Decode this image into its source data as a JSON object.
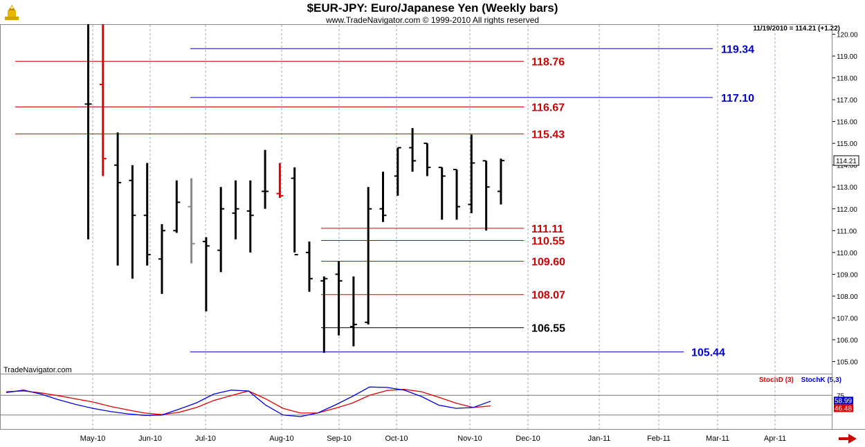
{
  "header": {
    "title": "$EUR-JPY:  Euro/Japanese Yen  (Weekly bars)",
    "subtitle": "www.TradeNavigator.com © 1999-2010 All rights reserved",
    "last_info": "11/19/2010 = 114.21 (+1.22)",
    "source_label": "TradeNavigator.com"
  },
  "colors": {
    "bars": "#000000",
    "down_bar_highlight": "#e00000",
    "neutral_bar": "#888888",
    "red_level": "#cc0000",
    "blue_level": "#0000cc",
    "black_level": "#000000",
    "stochD": "#dd0000",
    "stochK": "#0000dd",
    "grid": "#9aa6c8"
  },
  "chart_data": [
    {
      "type": "ohlc",
      "title": "$EUR-JPY:  Euro/Japanese Yen  (Weekly bars)",
      "ylim": [
        104.7,
        120.3
      ],
      "y_ticks": [
        "105.00",
        "106.00",
        "107.00",
        "108.00",
        "109.00",
        "110.00",
        "111.00",
        "112.00",
        "113.00",
        "114.00",
        "115.00",
        "116.00",
        "117.00",
        "118.00",
        "119.00",
        "120.00"
      ],
      "last_price_label": "114.21",
      "x_months": [
        "May-10",
        "Jun-10",
        "Jul-10",
        "Aug-10",
        "Sep-10",
        "Oct-10",
        "Nov-10",
        "Dec-10",
        "Jan-11",
        "Feb-11",
        "Mar-11",
        "Apr-11"
      ],
      "grid": true,
      "bars": [
        {
          "open": 116.8,
          "high": 121.0,
          "low": 110.6,
          "close": 116.8,
          "color": "black"
        },
        {
          "open": 117.7,
          "high": 121.0,
          "low": 113.5,
          "close": 114.3,
          "color": "red"
        },
        {
          "open": 114.0,
          "high": 115.5,
          "low": 109.4,
          "close": 113.2,
          "color": "black"
        },
        {
          "open": 113.3,
          "high": 114.0,
          "low": 108.8,
          "close": 111.7,
          "color": "black"
        },
        {
          "open": 111.7,
          "high": 114.1,
          "low": 109.4,
          "close": 109.9,
          "color": "black"
        },
        {
          "open": 109.7,
          "high": 111.3,
          "low": 108.1,
          "close": 111.0,
          "color": "black"
        },
        {
          "open": 111.0,
          "high": 113.3,
          "low": 110.9,
          "close": 112.3,
          "color": "black"
        },
        {
          "open": 112.1,
          "high": 113.4,
          "low": 109.5,
          "close": 110.4,
          "color": "gray"
        },
        {
          "open": 110.5,
          "high": 110.7,
          "low": 107.3,
          "close": 110.3,
          "color": "black"
        },
        {
          "open": 110.1,
          "high": 113.0,
          "low": 109.1,
          "close": 112.0,
          "color": "black"
        },
        {
          "open": 111.8,
          "high": 113.3,
          "low": 110.6,
          "close": 112.0,
          "color": "black"
        },
        {
          "open": 111.9,
          "high": 113.3,
          "low": 110.0,
          "close": 111.7,
          "color": "black"
        },
        {
          "open": 112.8,
          "high": 114.7,
          "low": 112.0,
          "close": 112.8,
          "color": "black"
        },
        {
          "open": 112.7,
          "high": 114.1,
          "low": 112.5,
          "close": 112.6,
          "color": "red"
        },
        {
          "open": 113.4,
          "high": 113.9,
          "low": 110.0,
          "close": 109.9,
          "color": "black"
        },
        {
          "open": 110.0,
          "high": 110.5,
          "low": 108.2,
          "close": 108.8,
          "color": "black"
        },
        {
          "open": 108.7,
          "high": 108.9,
          "low": 105.4,
          "close": 108.8,
          "color": "black"
        },
        {
          "open": 109.0,
          "high": 109.6,
          "low": 106.2,
          "close": 108.7,
          "color": "black"
        },
        {
          "open": 106.6,
          "high": 108.9,
          "low": 105.7,
          "close": 106.7,
          "color": "black"
        },
        {
          "open": 106.8,
          "high": 113.0,
          "low": 106.7,
          "close": 112.0,
          "color": "black"
        },
        {
          "open": 112.0,
          "high": 113.7,
          "low": 111.4,
          "close": 111.7,
          "color": "black"
        },
        {
          "open": 113.5,
          "high": 114.8,
          "low": 112.6,
          "close": 114.8,
          "color": "black"
        },
        {
          "open": 114.8,
          "high": 115.7,
          "low": 113.7,
          "close": 114.2,
          "color": "black"
        },
        {
          "open": 115.0,
          "high": 115.0,
          "low": 113.5,
          "close": 113.9,
          "color": "black"
        },
        {
          "open": 113.9,
          "high": 113.9,
          "low": 111.5,
          "close": 113.5,
          "color": "black"
        },
        {
          "open": 113.8,
          "high": 113.8,
          "low": 111.5,
          "close": 112.1,
          "color": "black"
        },
        {
          "open": 112.2,
          "high": 115.4,
          "low": 111.8,
          "close": 114.1,
          "color": "black"
        },
        {
          "open": 114.2,
          "high": 114.2,
          "low": 111.0,
          "close": 113.0,
          "color": "black"
        },
        {
          "open": 112.8,
          "high": 114.3,
          "low": 112.2,
          "close": 114.21,
          "color": "black"
        }
      ],
      "levels": [
        {
          "value": 119.34,
          "label": "119.34",
          "color": "blue",
          "span": "right"
        },
        {
          "value": 118.76,
          "label": "118.76",
          "color": "red",
          "span": "left"
        },
        {
          "value": 117.1,
          "label": "117.10",
          "color": "blue",
          "span": "right"
        },
        {
          "value": 116.67,
          "label": "116.67",
          "color": "red",
          "span": "left"
        },
        {
          "value": 115.43,
          "label": "115.43",
          "color": "red",
          "span": "left"
        },
        {
          "value": 111.11,
          "label": "111.11",
          "color": "red",
          "span": "short"
        },
        {
          "value": 110.55,
          "label": "110.55",
          "color": "red",
          "span": "short"
        },
        {
          "value": 109.6,
          "label": "109.60",
          "color": "red",
          "span": "short"
        },
        {
          "value": 108.07,
          "label": "108.07",
          "color": "red",
          "span": "short"
        },
        {
          "value": 106.55,
          "label": "106.55",
          "color": "black",
          "span": "short"
        },
        {
          "value": 105.44,
          "label": "105.44",
          "color": "blue",
          "span": "right"
        }
      ]
    },
    {
      "type": "line",
      "title": "",
      "ylim": [
        0,
        100
      ],
      "ref_lines": [
        75,
        25
      ],
      "tick_labels": [
        "75"
      ],
      "series": [
        {
          "name": "StochD (3)",
          "color": "red",
          "last_label": "46.48",
          "values": [
            [
              0,
              84
            ],
            [
              1,
              86
            ],
            [
              2,
              81
            ],
            [
              3,
              74
            ],
            [
              4,
              66
            ],
            [
              5,
              58
            ],
            [
              6,
              47
            ],
            [
              7,
              38
            ],
            [
              8,
              30
            ],
            [
              9,
              26
            ],
            [
              10,
              32
            ],
            [
              11,
              44
            ],
            [
              12,
              62
            ],
            [
              13,
              74
            ],
            [
              14,
              86
            ],
            [
              15,
              66
            ],
            [
              16,
              42
            ],
            [
              17,
              30
            ],
            [
              18,
              30
            ],
            [
              19,
              42
            ],
            [
              20,
              55
            ],
            [
              21,
              75
            ],
            [
              22,
              87
            ],
            [
              23,
              90
            ],
            [
              24,
              84
            ],
            [
              25,
              70
            ],
            [
              26,
              55
            ],
            [
              27,
              44
            ],
            [
              28,
              48
            ]
          ]
        },
        {
          "name": "StochK (5,3)",
          "color": "blue",
          "last_label": "58.99",
          "values": [
            [
              0,
              82
            ],
            [
              1,
              88
            ],
            [
              2,
              78
            ],
            [
              3,
              64
            ],
            [
              4,
              52
            ],
            [
              5,
              42
            ],
            [
              6,
              34
            ],
            [
              7,
              28
            ],
            [
              8,
              24
            ],
            [
              9,
              25
            ],
            [
              10,
              40
            ],
            [
              11,
              56
            ],
            [
              12,
              78
            ],
            [
              13,
              88
            ],
            [
              14,
              86
            ],
            [
              15,
              50
            ],
            [
              16,
              25
            ],
            [
              17,
              21
            ],
            [
              18,
              30
            ],
            [
              19,
              50
            ],
            [
              20,
              72
            ],
            [
              21,
              96
            ],
            [
              22,
              95
            ],
            [
              23,
              88
            ],
            [
              24,
              72
            ],
            [
              25,
              50
            ],
            [
              26,
              42
            ],
            [
              27,
              44
            ],
            [
              28,
              60
            ]
          ]
        }
      ]
    }
  ]
}
